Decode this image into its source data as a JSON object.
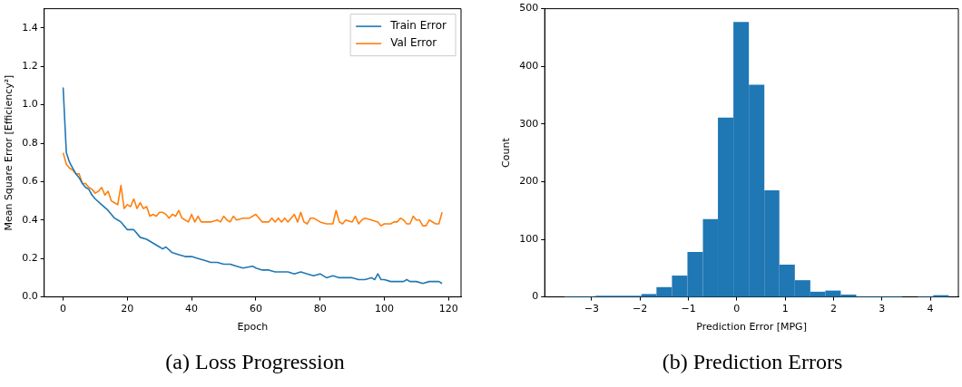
{
  "chart_data": [
    {
      "type": "line",
      "title": "(a) Loss Progression",
      "xlabel": "Epoch",
      "ylabel": "Mean Square Error [Efficiency²]",
      "series": [
        {
          "name": "Train Error",
          "color": "#1f77b4",
          "x": [
            0,
            1,
            2,
            3,
            4,
            5,
            6,
            7,
            8,
            9,
            10,
            12,
            14,
            16,
            17,
            18,
            20,
            22,
            24,
            26,
            28,
            30,
            31,
            32,
            34,
            36,
            38,
            40,
            42,
            44,
            46,
            48,
            50,
            52,
            54,
            56,
            59,
            60,
            62,
            64,
            66,
            67,
            68,
            70,
            72,
            74,
            76,
            78,
            80,
            82,
            84,
            86,
            88,
            90,
            92,
            94,
            96,
            97,
            98,
            99,
            100,
            102,
            104,
            106,
            107,
            108,
            110,
            112,
            114,
            116,
            117,
            118
          ],
          "values": [
            1.09,
            0.75,
            0.7,
            0.67,
            0.64,
            0.62,
            0.59,
            0.57,
            0.56,
            0.53,
            0.51,
            0.48,
            0.45,
            0.41,
            0.4,
            0.39,
            0.35,
            0.35,
            0.31,
            0.3,
            0.28,
            0.26,
            0.25,
            0.26,
            0.23,
            0.22,
            0.21,
            0.21,
            0.2,
            0.19,
            0.18,
            0.18,
            0.17,
            0.17,
            0.16,
            0.15,
            0.16,
            0.15,
            0.14,
            0.14,
            0.13,
            0.13,
            0.13,
            0.13,
            0.12,
            0.13,
            0.12,
            0.11,
            0.12,
            0.1,
            0.11,
            0.1,
            0.1,
            0.1,
            0.09,
            0.09,
            0.1,
            0.09,
            0.12,
            0.09,
            0.09,
            0.08,
            0.08,
            0.08,
            0.09,
            0.08,
            0.08,
            0.07,
            0.08,
            0.08,
            0.08,
            0.07
          ]
        },
        {
          "name": "Val Error",
          "color": "#ff7f0e",
          "x": [
            0,
            1,
            2,
            3,
            4,
            5,
            6,
            7,
            8,
            9,
            10,
            11,
            12,
            13,
            14,
            15,
            16,
            17,
            18,
            19,
            20,
            21,
            22,
            23,
            24,
            25,
            26,
            27,
            28,
            29,
            30,
            31,
            32,
            33,
            34,
            35,
            36,
            37,
            38,
            39,
            40,
            41,
            42,
            43,
            44,
            46,
            48,
            49,
            50,
            51,
            52,
            53,
            54,
            56,
            58,
            60,
            61,
            62,
            64,
            65,
            66,
            67,
            68,
            69,
            70,
            71,
            72,
            73,
            74,
            75,
            76,
            77,
            78,
            80,
            82,
            84,
            85,
            86,
            87,
            88,
            90,
            91,
            92,
            93,
            94,
            96,
            98,
            99,
            100,
            102,
            103,
            104,
            105,
            106,
            107,
            108,
            109,
            110,
            111,
            112,
            113,
            114,
            116,
            117,
            118
          ],
          "values": [
            0.75,
            0.69,
            0.67,
            0.66,
            0.64,
            0.64,
            0.59,
            0.59,
            0.57,
            0.56,
            0.54,
            0.55,
            0.57,
            0.53,
            0.55,
            0.5,
            0.49,
            0.48,
            0.58,
            0.46,
            0.48,
            0.47,
            0.51,
            0.46,
            0.49,
            0.46,
            0.47,
            0.42,
            0.43,
            0.42,
            0.44,
            0.44,
            0.43,
            0.41,
            0.43,
            0.42,
            0.45,
            0.41,
            0.4,
            0.39,
            0.43,
            0.39,
            0.42,
            0.39,
            0.39,
            0.39,
            0.4,
            0.39,
            0.42,
            0.4,
            0.39,
            0.42,
            0.4,
            0.41,
            0.41,
            0.43,
            0.41,
            0.39,
            0.39,
            0.41,
            0.39,
            0.41,
            0.39,
            0.41,
            0.39,
            0.41,
            0.43,
            0.39,
            0.44,
            0.39,
            0.38,
            0.41,
            0.41,
            0.39,
            0.38,
            0.38,
            0.45,
            0.39,
            0.38,
            0.4,
            0.39,
            0.42,
            0.38,
            0.4,
            0.41,
            0.4,
            0.39,
            0.37,
            0.38,
            0.38,
            0.39,
            0.39,
            0.41,
            0.4,
            0.38,
            0.38,
            0.42,
            0.4,
            0.4,
            0.37,
            0.37,
            0.4,
            0.38,
            0.38,
            0.44
          ]
        }
      ],
      "xlim": [
        -5.9,
        123.9
      ],
      "xticks": [
        0,
        20,
        40,
        60,
        80,
        100,
        120
      ],
      "ylim": [
        0,
        1.5
      ],
      "yticks": [
        {
          "value": 0,
          "label": "0.0"
        },
        {
          "value": 0.2,
          "label": "0.2"
        },
        {
          "value": 0.4,
          "label": "0.4"
        },
        {
          "value": 0.6,
          "label": "0.6"
        },
        {
          "value": 0.8,
          "label": "0.8"
        },
        {
          "value": 1,
          "label": "1.0"
        },
        {
          "value": 1.2,
          "label": "1.2"
        },
        {
          "value": 1.4,
          "label": "1.4"
        }
      ],
      "legend": "top right",
      "marker": "none",
      "line_style": "solid",
      "grid": false
    },
    {
      "type": "histogram",
      "title": "(b) Prediction Errors",
      "xlabel": "Prediction Error [MPG]",
      "ylabel": "Count",
      "color": "#1f77b4",
      "bins": [
        -3.56,
        -3.24,
        -2.92,
        -2.61,
        -2.29,
        -1.97,
        -1.66,
        -1.34,
        -1.02,
        -0.7,
        -0.39,
        -0.07,
        0.25,
        0.57,
        0.88,
        1.2,
        1.52,
        1.83,
        2.15,
        2.47,
        2.79,
        3.1,
        3.42,
        3.74,
        4.06,
        4.38
      ],
      "values": [
        1,
        1,
        2,
        2,
        2,
        5,
        17,
        37,
        78,
        135,
        311,
        477,
        368,
        185,
        56,
        29,
        9,
        11,
        4,
        1,
        1,
        1,
        0,
        1,
        3
      ],
      "xlim": [
        -3.97,
        4.58
      ],
      "xticks": [
        {
          "value": -3,
          "label": "−3"
        },
        {
          "value": -2,
          "label": "−2"
        },
        {
          "value": -1,
          "label": "−1"
        },
        0,
        1,
        2,
        3,
        4
      ],
      "ylim": [
        0,
        500
      ],
      "yticks": [
        0,
        100,
        200,
        300,
        400,
        500
      ],
      "grid": false
    }
  ]
}
